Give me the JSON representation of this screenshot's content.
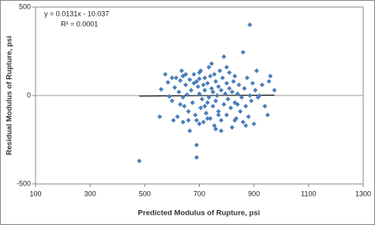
{
  "chart_data": {
    "type": "scatter",
    "x_label": "Predicted Modulus of Rupture, psi",
    "y_label": "Residual Modulus of Rupture, psi",
    "equation": "y = 0.0131x - 10.037",
    "r_squared": "R² = 0.0001",
    "trendline": {
      "slope": 0.0131,
      "intercept": -10.037
    },
    "xlim": [
      100,
      1300
    ],
    "xticks": [
      100,
      300,
      500,
      700,
      900,
      1100,
      1300
    ],
    "ylim": [
      -500,
      500
    ],
    "yticks": [
      -500,
      0,
      500
    ],
    "color": "#4a7ebb",
    "x": [
      480,
      555,
      560,
      575,
      585,
      590,
      600,
      605,
      610,
      615,
      620,
      625,
      630,
      635,
      640,
      640,
      645,
      650,
      655,
      660,
      665,
      665,
      670,
      675,
      680,
      680,
      685,
      690,
      690,
      690,
      695,
      700,
      700,
      705,
      705,
      710,
      715,
      715,
      720,
      720,
      725,
      730,
      730,
      735,
      735,
      740,
      740,
      745,
      745,
      750,
      750,
      755,
      755,
      760,
      760,
      765,
      770,
      770,
      775,
      780,
      780,
      785,
      790,
      790,
      795,
      800,
      800,
      805,
      810,
      810,
      815,
      820,
      820,
      825,
      830,
      835,
      840,
      845,
      850,
      855,
      860,
      860,
      865,
      870,
      875,
      880,
      885,
      885,
      890,
      895,
      900,
      905,
      910,
      915,
      920,
      930,
      940,
      950,
      955,
      960,
      975,
      600,
      630,
      660,
      700,
      760,
      780,
      830,
      870,
      650,
      700,
      730,
      800,
      830,
      640,
      690,
      720,
      770,
      840
    ],
    "y": [
      -370,
      -120,
      35,
      120,
      75,
      -5,
      -30,
      -140,
      45,
      100,
      -120,
      20,
      85,
      140,
      -150,
      110,
      -60,
      60,
      5,
      -90,
      90,
      -200,
      30,
      -40,
      120,
      70,
      -110,
      -280,
      -350,
      -140,
      50,
      10,
      95,
      -70,
      140,
      -20,
      60,
      -150,
      100,
      30,
      -100,
      -40,
      70,
      160,
      -10,
      110,
      -130,
      40,
      180,
      -60,
      20,
      120,
      -170,
      80,
      -30,
      0,
      50,
      -90,
      140,
      -140,
      30,
      100,
      220,
      -50,
      10,
      70,
      -110,
      -20,
      40,
      130,
      -70,
      -180,
      20,
      80,
      -40,
      -130,
      10,
      60,
      -90,
      -10,
      245,
      -150,
      40,
      -60,
      100,
      -120,
      400,
      0,
      -30,
      70,
      -160,
      30,
      140,
      -10,
      0,
      60,
      -60,
      -110,
      80,
      110,
      30,
      100,
      -50,
      -140,
      -160,
      -190,
      -200,
      -140,
      -170,
      120,
      130,
      -130,
      160,
      110,
      -10,
      80,
      -60,
      -110,
      -50
    ]
  }
}
